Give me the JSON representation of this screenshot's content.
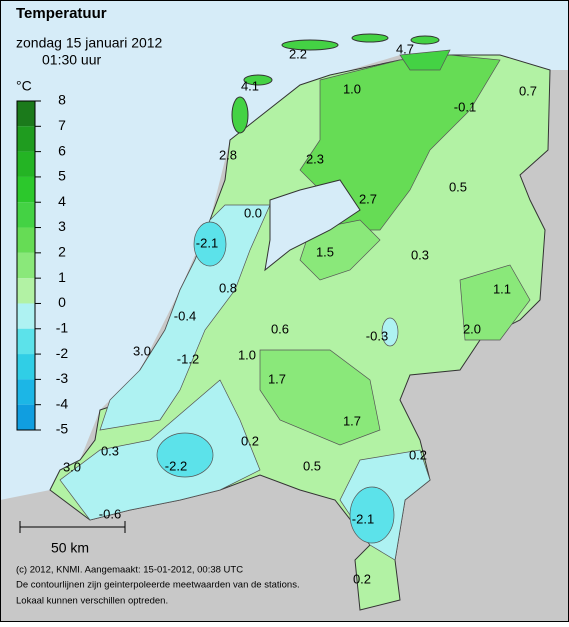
{
  "header": {
    "title": "Temperatuur",
    "date": "zondag 15 januari 2012",
    "time": "01:30 uur"
  },
  "legend": {
    "unit": "°C",
    "ticks": [
      8,
      7,
      6,
      5,
      4,
      3,
      2,
      1,
      0,
      -1,
      -2,
      -3,
      -4,
      -5
    ],
    "colors": [
      "#1b7a1b",
      "#1f9c1f",
      "#24b424",
      "#2cc82c",
      "#44d244",
      "#66dc55",
      "#8ae87a",
      "#b2f2a4",
      "#aef2f2",
      "#5ce2ea",
      "#30cee6",
      "#1cb6e6",
      "#109ee0"
    ]
  },
  "stations": {
    "values": [
      2.2,
      4.7,
      4.1,
      1.0,
      -0.1,
      0.7,
      2.8,
      2.3,
      0.5,
      2.7,
      0.0,
      -2.1,
      1.5,
      0.3,
      0.8,
      1.1,
      -0.4,
      0.6,
      -0.3,
      2.0,
      3.0,
      1.0,
      -1.2,
      1.7,
      1.7,
      0.2,
      0.3,
      0.2,
      -2.2,
      0.5,
      3.0,
      -2.1,
      -0.6,
      0.2
    ],
    "value_labels": [
      "2.2",
      "4.7",
      "4.1",
      "1.0",
      "-0.1",
      "0.7",
      "2.8",
      "2.3",
      "0.5",
      "2.7",
      "0.0",
      "-2.1",
      "1.5",
      "0.3",
      "0.8",
      "1.1",
      "-0.4",
      "0.6",
      "-0.3",
      "2.0",
      "3.0",
      "1.0",
      "-1.2",
      "1.7",
      "1.7",
      "0.2",
      "0.3",
      "0.2",
      "-2.2",
      "0.5",
      "3.0",
      "-2.1",
      "-0.6",
      "0.2"
    ]
  },
  "scale": "50 km",
  "footer": [
    "(c) 2012, KNMI. Aangemaakt: 15-01-2012, 00:38 UTC",
    "De contourlijnen zijn geinterpoleerde meetwaarden van de stations.",
    "Lokaal kunnen verschillen optreden."
  ]
}
